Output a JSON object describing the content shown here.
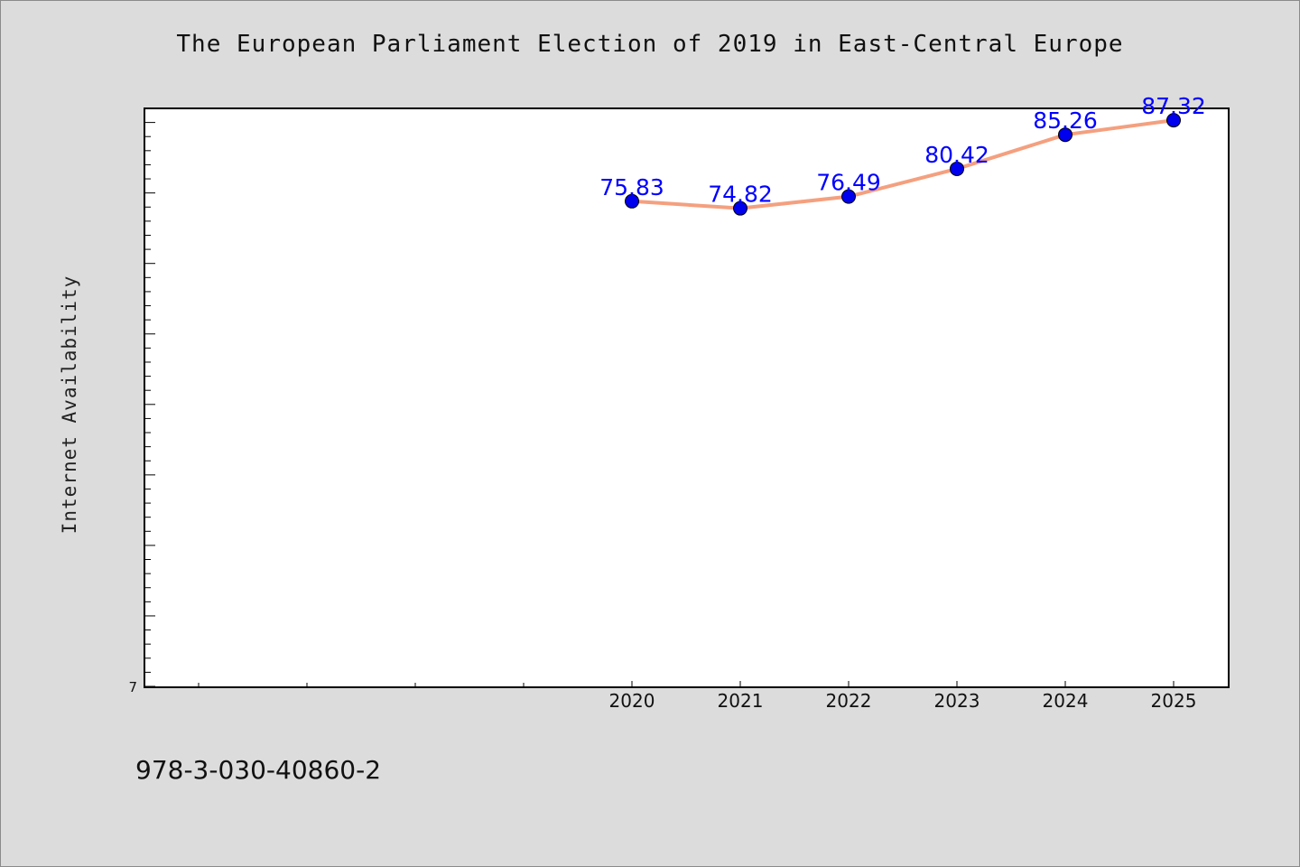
{
  "chart_data": {
    "type": "line",
    "title": "The European Parliament Election of 2019 in East-Central Europe",
    "xlabel": "",
    "ylabel": "Internet Availability",
    "x": [
      "2020",
      "2021",
      "2022",
      "2023",
      "2024",
      "2025"
    ],
    "xlim": [
      2015.5,
      2025.5
    ],
    "series": [
      {
        "values": [
          75.83,
          74.82,
          76.49,
          80.42,
          85.26,
          87.32
        ]
      }
    ],
    "data_labels": [
      "75.83",
      "74.82",
      "76.49",
      "80.42",
      "85.26",
      "87.32"
    ],
    "ylim": [
      7,
      89
    ],
    "y_tick_labels": [
      "7"
    ],
    "grid": false,
    "legend": "none",
    "colors": {
      "line": "#f4a07f",
      "marker": "#0000ee",
      "data_label": "#0000ff",
      "plot_background": "#ffffff",
      "page_background": "#dcdcdc"
    }
  },
  "footer": {
    "text": "978-3-030-40860-2"
  }
}
